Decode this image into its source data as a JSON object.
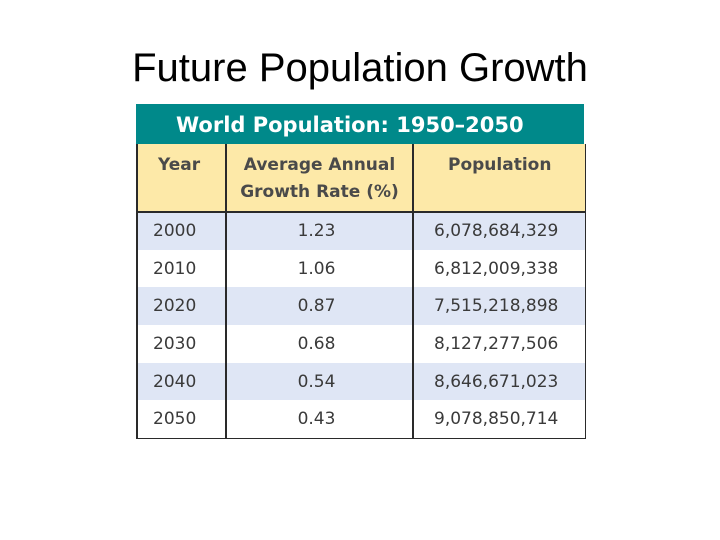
{
  "slide": {
    "title": "Future Population Growth"
  },
  "table": {
    "title": "World Population: 1950–2050",
    "headers": {
      "year": "Year",
      "rate_line1": "Average Annual",
      "rate_line2": "Growth Rate (%)",
      "population": "Population"
    },
    "rows": [
      {
        "year": "2000",
        "rate": "1.23",
        "population": "6,078,684,329"
      },
      {
        "year": "2010",
        "rate": "1.06",
        "population": "6,812,009,338"
      },
      {
        "year": "2020",
        "rate": "0.87",
        "population": "7,515,218,898"
      },
      {
        "year": "2030",
        "rate": "0.68",
        "population": "8,127,277,506"
      },
      {
        "year": "2040",
        "rate": "0.54",
        "population": "8,646,671,023"
      },
      {
        "year": "2050",
        "rate": "0.43",
        "population": "9,078,850,714"
      }
    ]
  },
  "colors": {
    "banner": "#00898a",
    "header_bg": "#fde9a8",
    "row_stripe": "#dfe6f5"
  }
}
